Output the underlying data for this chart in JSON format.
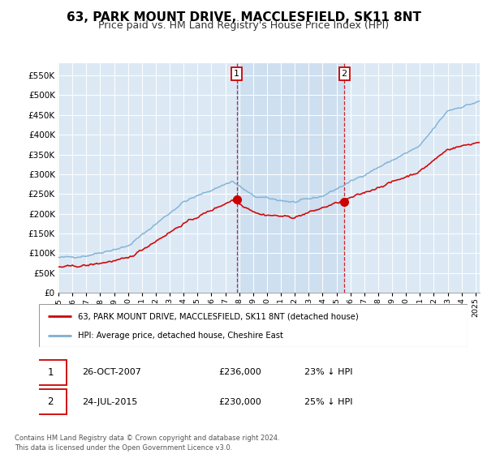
{
  "title": "63, PARK MOUNT DRIVE, MACCLESFIELD, SK11 8NT",
  "subtitle": "Price paid vs. HM Land Registry's House Price Index (HPI)",
  "title_fontsize": 11,
  "subtitle_fontsize": 9,
  "bg_color": "#ffffff",
  "plot_bg_color": "#dce9f5",
  "shade_color": "#c5d9ee",
  "red_color": "#cc0000",
  "blue_color": "#7bafd4",
  "marker1_date": 2007.82,
  "marker1_price": 236000,
  "marker1_label": "1",
  "marker2_date": 2015.56,
  "marker2_price": 230000,
  "marker2_label": "2",
  "legend1": "63, PARK MOUNT DRIVE, MACCLESFIELD, SK11 8NT (detached house)",
  "legend2": "HPI: Average price, detached house, Cheshire East",
  "table1_num": "1",
  "table1_date": "26-OCT-2007",
  "table1_price": "£236,000",
  "table1_hpi": "23% ↓ HPI",
  "table2_num": "2",
  "table2_date": "24-JUL-2015",
  "table2_price": "£230,000",
  "table2_hpi": "25% ↓ HPI",
  "footer": "Contains HM Land Registry data © Crown copyright and database right 2024.\nThis data is licensed under the Open Government Licence v3.0.",
  "ylim": [
    0,
    580000
  ],
  "yticks": [
    0,
    50000,
    100000,
    150000,
    200000,
    250000,
    300000,
    350000,
    400000,
    450000,
    500000,
    550000
  ],
  "xlim_start": 1995.0,
  "xlim_end": 2025.3
}
